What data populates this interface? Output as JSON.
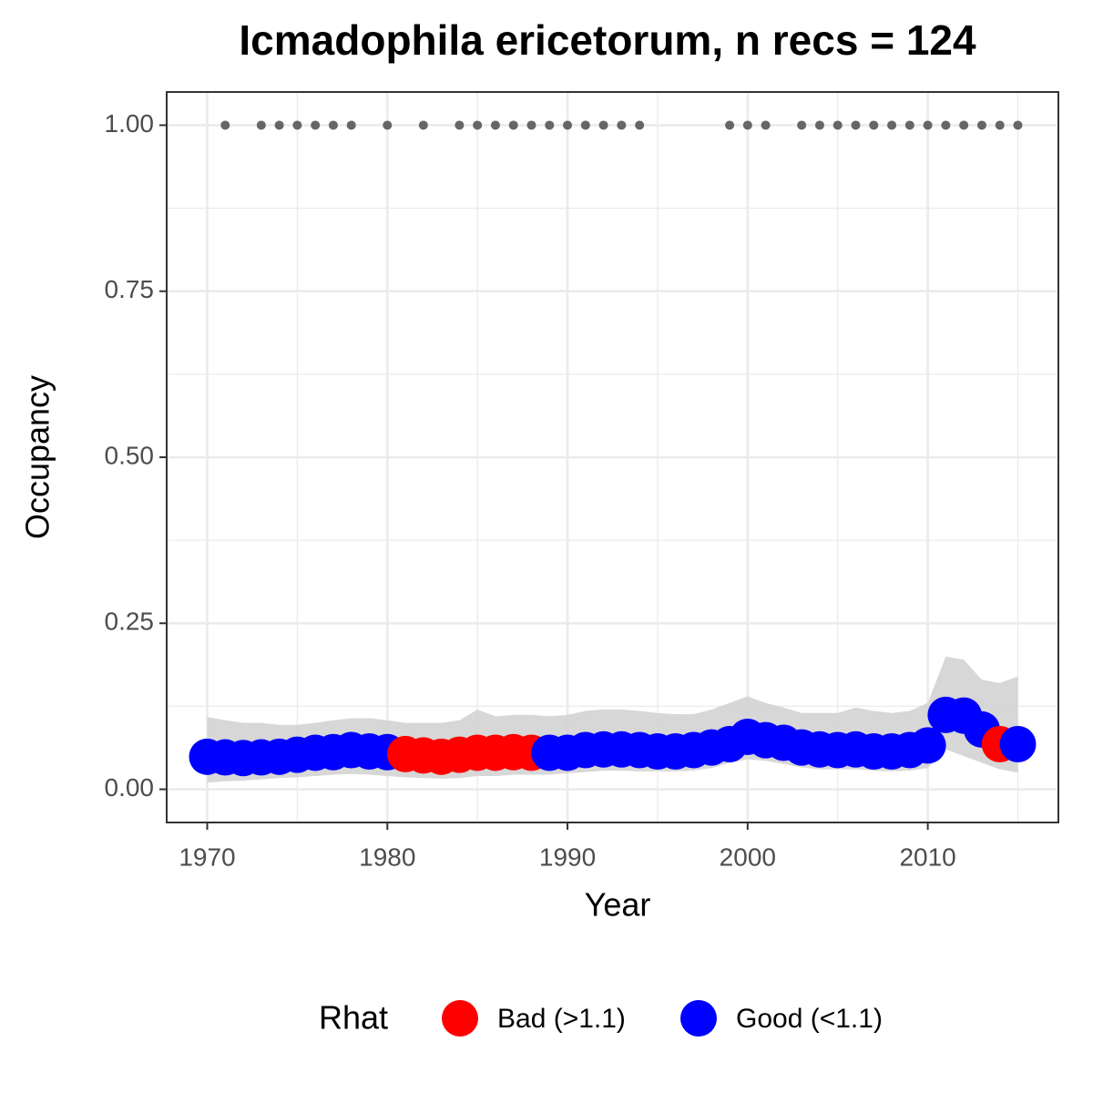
{
  "chart_data": {
    "type": "occupancy",
    "title": "Icmadophila ericetorum, n recs = 124",
    "x_label": "Year",
    "y_label": "Occupancy",
    "xlim": [
      1967.75,
      2017.25
    ],
    "ylim": [
      -0.05,
      1.05
    ],
    "xticks": [
      1970,
      1980,
      1990,
      2000,
      2010
    ],
    "yticks": [
      {
        "value": 0,
        "label": "0.00"
      },
      {
        "value": 0.25,
        "label": "0.25"
      },
      {
        "value": 0.5,
        "label": "0.50"
      },
      {
        "value": 0.75,
        "label": "0.75"
      },
      {
        "value": 1,
        "label": "1.00"
      }
    ],
    "xminor": [
      1975,
      1985,
      1995,
      2005,
      2015
    ],
    "yminor": [
      0.125,
      0.375,
      0.625,
      0.875
    ],
    "grid": true,
    "legend_title": "Rhat",
    "legend_position": "bottom",
    "groups": [
      {
        "name": "Bad (>1.1)",
        "color": "#ff0000"
      },
      {
        "name": "Good (<1.1)",
        "color": "#0000ff"
      }
    ],
    "x": [
      1970,
      1971,
      1972,
      1973,
      1974,
      1975,
      1976,
      1977,
      1978,
      1979,
      1980,
      1981,
      1982,
      1983,
      1984,
      1985,
      1986,
      1987,
      1988,
      1989,
      1990,
      1991,
      1992,
      1993,
      1994,
      1995,
      1996,
      1997,
      1998,
      1999,
      2000,
      2001,
      2002,
      2003,
      2004,
      2005,
      2006,
      2007,
      2008,
      2009,
      2010,
      2011,
      2012,
      2013,
      2014,
      2015
    ],
    "values": [
      0.049,
      0.048,
      0.047,
      0.048,
      0.049,
      0.052,
      0.055,
      0.056,
      0.059,
      0.057,
      0.056,
      0.053,
      0.051,
      0.049,
      0.052,
      0.055,
      0.055,
      0.056,
      0.055,
      0.055,
      0.055,
      0.059,
      0.06,
      0.06,
      0.059,
      0.057,
      0.057,
      0.059,
      0.063,
      0.068,
      0.079,
      0.074,
      0.07,
      0.063,
      0.06,
      0.059,
      0.06,
      0.057,
      0.057,
      0.059,
      0.066,
      0.112,
      0.111,
      0.09,
      0.068,
      0.068
    ],
    "group": [
      1,
      1,
      1,
      1,
      1,
      1,
      1,
      1,
      1,
      1,
      1,
      0,
      0,
      0,
      0,
      0,
      0,
      0,
      0,
      1,
      1,
      1,
      1,
      1,
      1,
      1,
      1,
      1,
      1,
      1,
      1,
      1,
      1,
      1,
      1,
      1,
      1,
      1,
      1,
      1,
      1,
      1,
      1,
      1,
      0,
      1
    ],
    "upper": [
      0.109,
      0.104,
      0.1,
      0.1,
      0.097,
      0.097,
      0.1,
      0.104,
      0.107,
      0.107,
      0.104,
      0.1,
      0.1,
      0.1,
      0.104,
      0.12,
      0.11,
      0.112,
      0.112,
      0.11,
      0.112,
      0.118,
      0.12,
      0.12,
      0.118,
      0.115,
      0.113,
      0.113,
      0.12,
      0.13,
      0.14,
      0.13,
      0.123,
      0.115,
      0.115,
      0.115,
      0.123,
      0.118,
      0.115,
      0.118,
      0.13,
      0.2,
      0.195,
      0.165,
      0.16,
      0.17
    ],
    "lower": [
      0.01,
      0.012,
      0.013,
      0.015,
      0.017,
      0.018,
      0.02,
      0.022,
      0.023,
      0.022,
      0.02,
      0.018,
      0.017,
      0.016,
      0.017,
      0.02,
      0.02,
      0.022,
      0.022,
      0.022,
      0.024,
      0.026,
      0.028,
      0.028,
      0.027,
      0.027,
      0.027,
      0.028,
      0.032,
      0.04,
      0.045,
      0.043,
      0.038,
      0.033,
      0.03,
      0.03,
      0.03,
      0.028,
      0.027,
      0.028,
      0.032,
      0.06,
      0.05,
      0.04,
      0.03,
      0.025
    ],
    "band_color": "#d3d3d3",
    "records": {
      "value": 1,
      "color": "#666666",
      "x": [
        1971,
        1973,
        1974,
        1975,
        1976,
        1977,
        1978,
        1980,
        1982,
        1984,
        1985,
        1986,
        1987,
        1988,
        1989,
        1990,
        1991,
        1992,
        1993,
        1994,
        1999,
        2000,
        2001,
        2003,
        2004,
        2005,
        2006,
        2007,
        2008,
        2009,
        2010,
        2011,
        2012,
        2013,
        2014,
        2015
      ]
    }
  }
}
